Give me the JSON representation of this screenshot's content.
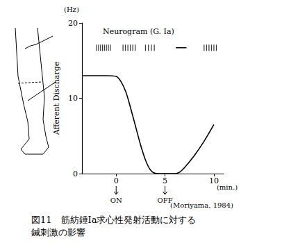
{
  "chart_data": {
    "type": "line",
    "title": "図11　筋紡錘Ia求心性発射活動に対する\n鍼刺激の影響",
    "y_label": "Afferent Discharge",
    "y_unit": "(Hz)",
    "x_unit": "(min.)",
    "source": "(Moriyama, 1984)",
    "x": [
      -3.4,
      -2,
      -1,
      0,
      0.5,
      1,
      1.5,
      2,
      2.5,
      3,
      3.5,
      4,
      5,
      6,
      6.5,
      7,
      8,
      9,
      10
    ],
    "values": [
      13,
      13,
      13,
      12.9,
      12.2,
      10.8,
      8.6,
      6.2,
      3.8,
      1.8,
      0.5,
      0.05,
      0,
      0,
      0.2,
      0.8,
      2.4,
      4.3,
      6.5
    ],
    "color": "#000000",
    "xlim": [
      -3.5,
      11
    ],
    "xticks": [
      0,
      5,
      10
    ],
    "ylim": [
      0,
      20
    ],
    "yticks": [
      0,
      10,
      20
    ],
    "grid": false,
    "annotations": [
      {
        "x": 0,
        "text": "ON"
      },
      {
        "x": 5,
        "text": "OFF"
      }
    ],
    "neurogram": {
      "label": "Neurogram (G. Ia)",
      "level": 16.7,
      "spikes": [
        -2.0,
        -1.8,
        -1.6,
        -1.4,
        -1.2,
        -1.0,
        -0.8,
        -0.6,
        0.7,
        0.95,
        1.2,
        1.45,
        1.7,
        1.95,
        3.0,
        3.3,
        3.6,
        3.9,
        9.0,
        9.25,
        9.5,
        9.75,
        10.0,
        10.25
      ],
      "silent": [
        6.1,
        7.2
      ]
    }
  }
}
